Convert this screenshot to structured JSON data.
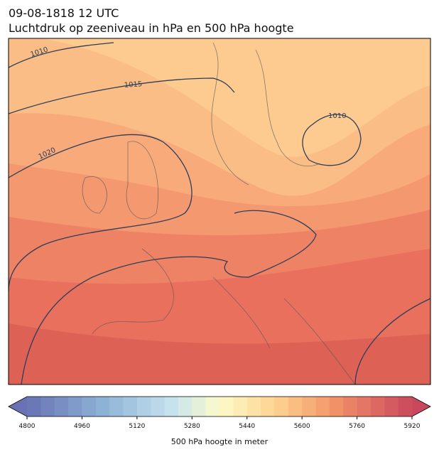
{
  "title": {
    "line1": "09-08-1818 12 UTC",
    "line2": "Luchtdruk op zeeniveau in hPa en 500 hPa hoogte"
  },
  "contour_labels": [
    "1010",
    "1015",
    "1020",
    "1010"
  ],
  "colorbar": {
    "label": "500 hPa hoogte in meter",
    "lim": [
      4800,
      5920
    ],
    "step": 40,
    "ticks": [
      4800,
      4960,
      5120,
      5280,
      5440,
      5600,
      5760,
      5920
    ]
  }
}
